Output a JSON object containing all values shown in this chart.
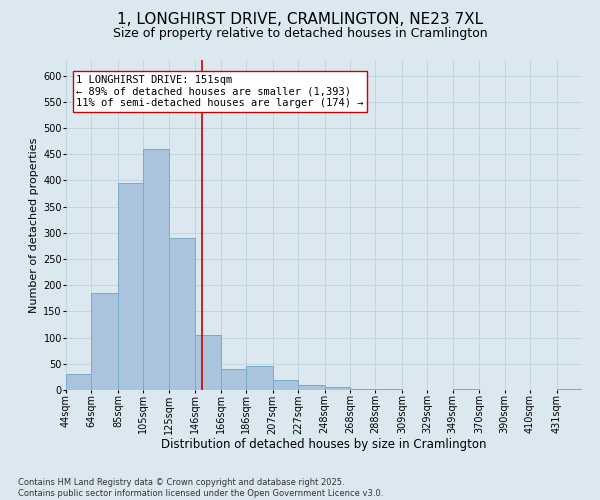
{
  "title_line1": "1, LONGHIRST DRIVE, CRAMLINGTON, NE23 7XL",
  "title_line2": "Size of property relative to detached houses in Cramlington",
  "xlabel": "Distribution of detached houses by size in Cramlington",
  "ylabel": "Number of detached properties",
  "bin_edges": [
    44,
    64,
    85,
    105,
    125,
    146,
    166,
    186,
    207,
    227,
    248,
    268,
    288,
    309,
    329,
    349,
    370,
    390,
    410,
    431,
    451
  ],
  "bar_heights": [
    30,
    185,
    395,
    460,
    290,
    105,
    40,
    45,
    20,
    10,
    5,
    2,
    1,
    0,
    0,
    1,
    0,
    0,
    0,
    1
  ],
  "bar_color": "#aac4de",
  "bar_edge_color": "#7aaac8",
  "vline_x": 151,
  "vline_color": "#cc0000",
  "annotation_text": "1 LONGHIRST DRIVE: 151sqm\n← 89% of detached houses are smaller (1,393)\n11% of semi-detached houses are larger (174) →",
  "annotation_box_color": "white",
  "annotation_box_edge": "#cc0000",
  "ylim": [
    0,
    630
  ],
  "yticks": [
    0,
    50,
    100,
    150,
    200,
    250,
    300,
    350,
    400,
    450,
    500,
    550,
    600
  ],
  "grid_color": "#c0d4e4",
  "bg_color": "#dce8f0",
  "footnote": "Contains HM Land Registry data © Crown copyright and database right 2025.\nContains public sector information licensed under the Open Government Licence v3.0.",
  "title_fontsize": 11,
  "subtitle_fontsize": 9,
  "tick_fontsize": 7,
  "xlabel_fontsize": 8.5,
  "ylabel_fontsize": 8,
  "footnote_fontsize": 6,
  "annotation_fontsize": 7.5
}
